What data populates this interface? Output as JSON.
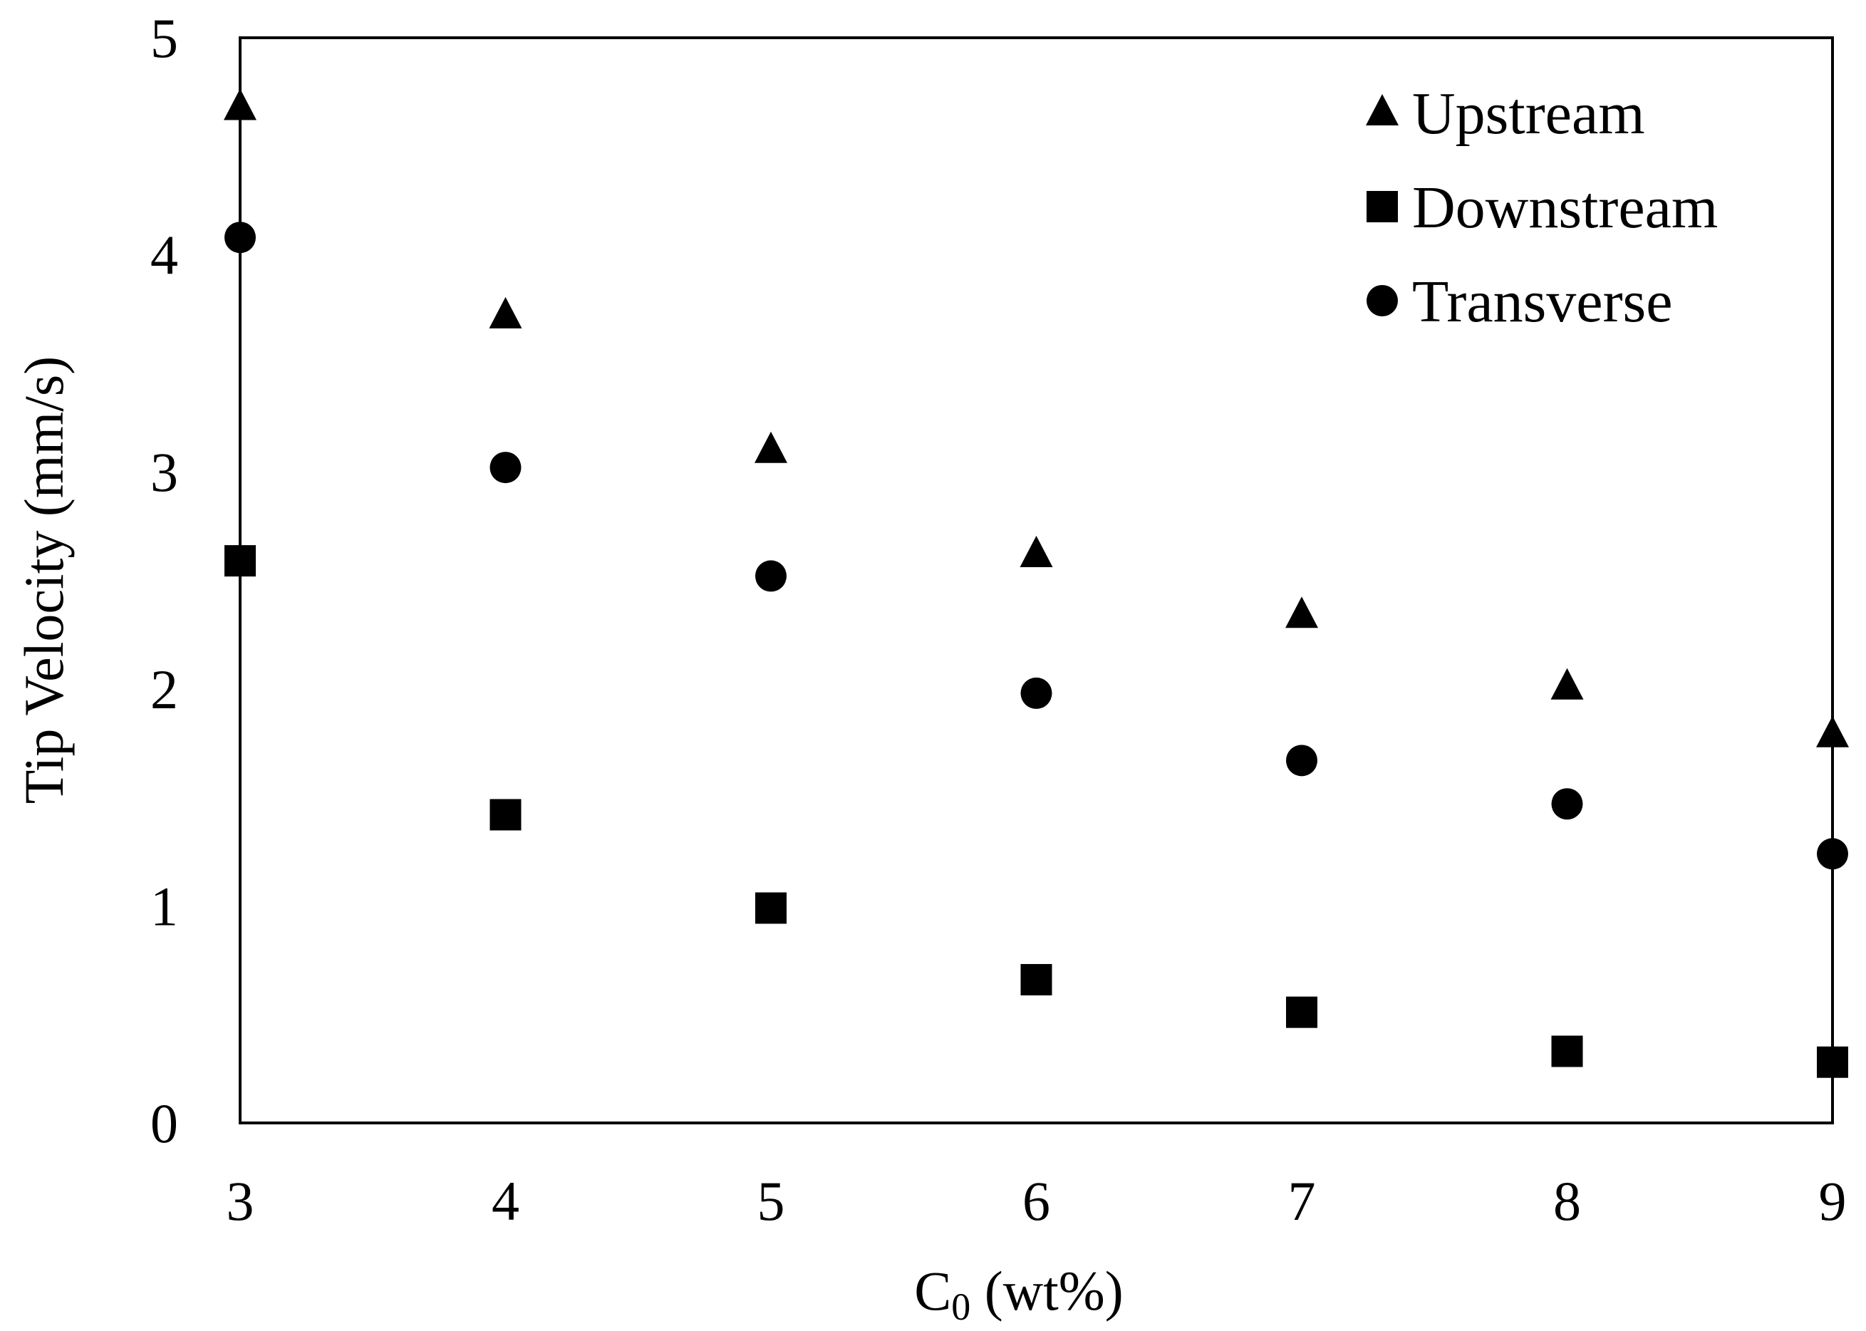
{
  "chart_data": {
    "type": "scatter",
    "title": "",
    "xlabel": {
      "main": "C",
      "sub": "0",
      "rest": " (wt%)"
    },
    "ylabel": "Tip Velocity (mm/s)",
    "xlim": [
      3,
      9
    ],
    "ylim": [
      0,
      5
    ],
    "x_ticks": [
      "3",
      "4",
      "5",
      "6",
      "7",
      "8",
      "9"
    ],
    "y_ticks": [
      "0",
      "1",
      "2",
      "3",
      "4",
      "5"
    ],
    "grid": false,
    "legend_position": "top-right",
    "x": [
      3,
      4,
      5,
      6,
      7,
      8,
      9
    ],
    "series": [
      {
        "name": "Upstream",
        "marker": "triangle",
        "color": "#000000",
        "values": [
          4.68,
          3.72,
          3.1,
          2.62,
          2.34,
          2.01,
          1.79
        ]
      },
      {
        "name": "Downstream",
        "marker": "square",
        "color": "#000000",
        "values": [
          2.59,
          1.42,
          0.99,
          0.66,
          0.51,
          0.33,
          0.28
        ]
      },
      {
        "name": "Transverse",
        "marker": "circle",
        "color": "#000000",
        "values": [
          4.08,
          3.02,
          2.52,
          1.98,
          1.67,
          1.47,
          1.24
        ]
      }
    ]
  }
}
